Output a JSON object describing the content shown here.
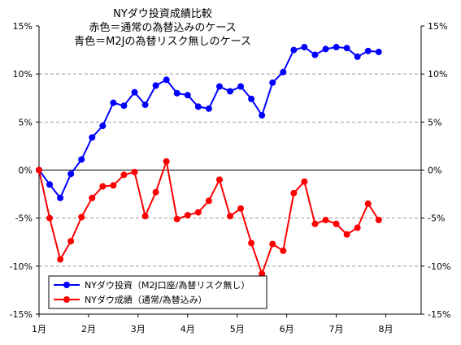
{
  "chart_data": {
    "type": "line",
    "title_lines": [
      "NYダウ投資成績比較",
      "赤色＝通常の為替込みのケース",
      "青色＝M2Jの為替リスク無しのケース"
    ],
    "ylim": [
      -15,
      15
    ],
    "y_ticks": [
      15,
      10,
      5,
      0,
      -5,
      -10,
      -15
    ],
    "y_tick_labels": [
      "15%",
      "10%",
      "5%",
      "0%",
      "-5%",
      "-10%",
      "-15%"
    ],
    "month_labels": [
      "1月",
      "2月",
      "3月",
      "4月",
      "5月",
      "6月",
      "7月",
      "8月"
    ],
    "month_positions": [
      0,
      4.67,
      9.33,
      14,
      18.67,
      23.33,
      28,
      32.67
    ],
    "x_max": 36,
    "grid": "horizontal-dashed",
    "legend_position": "bottom-left",
    "series": [
      {
        "name": "NYダウ投資（M2J口座/為替リスク無し）",
        "color": "#0000ff",
        "values": [
          0,
          -1.5,
          -2.9,
          -0.4,
          1.1,
          3.4,
          4.6,
          7.0,
          6.7,
          8.1,
          6.8,
          8.8,
          9.4,
          8.0,
          7.8,
          6.6,
          6.4,
          8.7,
          8.2,
          8.7,
          7.4,
          5.7,
          9.1,
          10.2,
          12.5,
          12.8,
          12.0,
          12.6,
          12.8,
          12.7,
          11.8,
          12.4,
          12.3
        ]
      },
      {
        "name": "NYダウ成績（通常/為替込み）",
        "color": "#ff0000",
        "values": [
          0,
          -5.0,
          -9.3,
          -7.4,
          -4.9,
          -2.9,
          -1.7,
          -1.6,
          -0.5,
          -0.2,
          -4.8,
          -2.3,
          0.9,
          -5.1,
          -4.7,
          -4.4,
          -3.2,
          -1.0,
          -4.8,
          -4.0,
          -7.6,
          -10.8,
          -7.7,
          -8.4,
          -2.4,
          -1.2,
          -5.6,
          -5.2,
          -5.6,
          -6.7,
          -6.0,
          -3.5,
          -5.2
        ]
      }
    ]
  }
}
